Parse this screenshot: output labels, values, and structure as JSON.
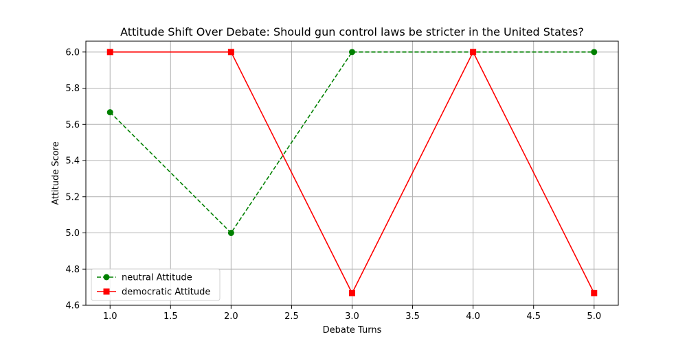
{
  "chart_data": {
    "type": "line",
    "title": "Attitude Shift Over Debate: Should gun control laws be stricter in the United States?",
    "xlabel": "Debate Turns",
    "ylabel": "Attitude Score",
    "xlim": [
      0.8,
      5.2
    ],
    "ylim": [
      4.6,
      6.06
    ],
    "xticks": [
      1.0,
      1.5,
      2.0,
      2.5,
      3.0,
      3.5,
      4.0,
      4.5,
      5.0
    ],
    "xtick_labels": [
      "1.0",
      "1.5",
      "2.0",
      "2.5",
      "3.0",
      "3.5",
      "4.0",
      "4.5",
      "5.0"
    ],
    "yticks": [
      4.6,
      4.8,
      5.0,
      5.2,
      5.4,
      5.6,
      5.8,
      6.0
    ],
    "ytick_labels": [
      "4.6",
      "4.8",
      "5.0",
      "5.2",
      "5.4",
      "5.6",
      "5.8",
      "6.0"
    ],
    "grid": true,
    "legend_position": "lower-left",
    "x": [
      1,
      2,
      3,
      4,
      5
    ],
    "series": [
      {
        "name": "neutral Attitude",
        "values": [
          5.667,
          5.0,
          6.0,
          6.0,
          6.0
        ],
        "color": "#008000",
        "linestyle": "dashed",
        "marker": "circle"
      },
      {
        "name": "democratic Attitude",
        "values": [
          6.0,
          6.0,
          4.667,
          6.0,
          4.667
        ],
        "color": "#ff0000",
        "linestyle": "solid",
        "marker": "square"
      }
    ]
  }
}
